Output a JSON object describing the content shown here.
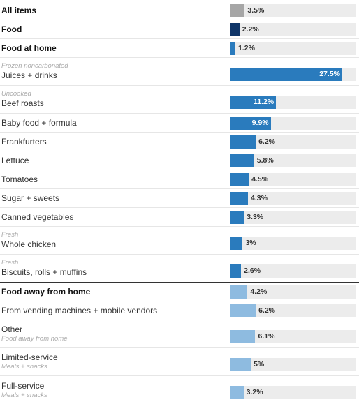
{
  "chart_data": {
    "type": "bar",
    "orientation": "horizontal",
    "value_suffix": "%",
    "xlim": [
      0,
      27.5
    ],
    "colors": {
      "all_items": "#a6a6a6",
      "food": "#0f3568",
      "food_at_home": "#2a7bbd",
      "food_away": "#8ebbe0",
      "track": "#ececec"
    },
    "rows": [
      {
        "label": "All items",
        "sublabel": "",
        "value": 3.5,
        "group": "all_items",
        "bold": true
      },
      {
        "label": "Food",
        "sublabel": "",
        "value": 2.2,
        "group": "food",
        "bold": true
      },
      {
        "label": "Food at home",
        "sublabel": "",
        "value": 1.2,
        "group": "food_at_home",
        "bold": true
      },
      {
        "label": "Juices + drinks",
        "sublabel": "Frozen noncarbonated",
        "value": 27.5,
        "group": "food_at_home",
        "bold": false
      },
      {
        "label": "Beef roasts",
        "sublabel": "Uncooked",
        "value": 11.2,
        "group": "food_at_home",
        "bold": false
      },
      {
        "label": "Baby food + formula",
        "sublabel": "",
        "value": 9.9,
        "group": "food_at_home",
        "bold": false
      },
      {
        "label": "Frankfurters",
        "sublabel": "",
        "value": 6.2,
        "group": "food_at_home",
        "bold": false
      },
      {
        "label": "Lettuce",
        "sublabel": "",
        "value": 5.8,
        "group": "food_at_home",
        "bold": false
      },
      {
        "label": "Tomatoes",
        "sublabel": "",
        "value": 4.5,
        "group": "food_at_home",
        "bold": false
      },
      {
        "label": "Sugar + sweets",
        "sublabel": "",
        "value": 4.3,
        "group": "food_at_home",
        "bold": false
      },
      {
        "label": "Canned vegetables",
        "sublabel": "",
        "value": 3.3,
        "group": "food_at_home",
        "bold": false
      },
      {
        "label": "Whole chicken",
        "sublabel": "Fresh",
        "value": 3,
        "group": "food_at_home",
        "bold": false
      },
      {
        "label": "Biscuits, rolls + muffins",
        "sublabel": "Fresh",
        "value": 2.6,
        "group": "food_at_home",
        "bold": false
      },
      {
        "label": "Food away from home",
        "sublabel": "",
        "value": 4.2,
        "group": "food_away",
        "bold": true
      },
      {
        "label": "From vending machines + mobile vendors",
        "sublabel": "",
        "value": 6.2,
        "group": "food_away",
        "bold": false
      },
      {
        "label": "Other",
        "sublabel": "Food away from home",
        "value": 6.1,
        "group": "food_away",
        "bold": false
      },
      {
        "label": "Limited-service",
        "sublabel": "Meals + snacks",
        "value": 5,
        "group": "food_away",
        "bold": false
      },
      {
        "label": "Full-service",
        "sublabel": "Meals + snacks",
        "value": 3.2,
        "group": "food_away",
        "bold": false
      }
    ]
  }
}
